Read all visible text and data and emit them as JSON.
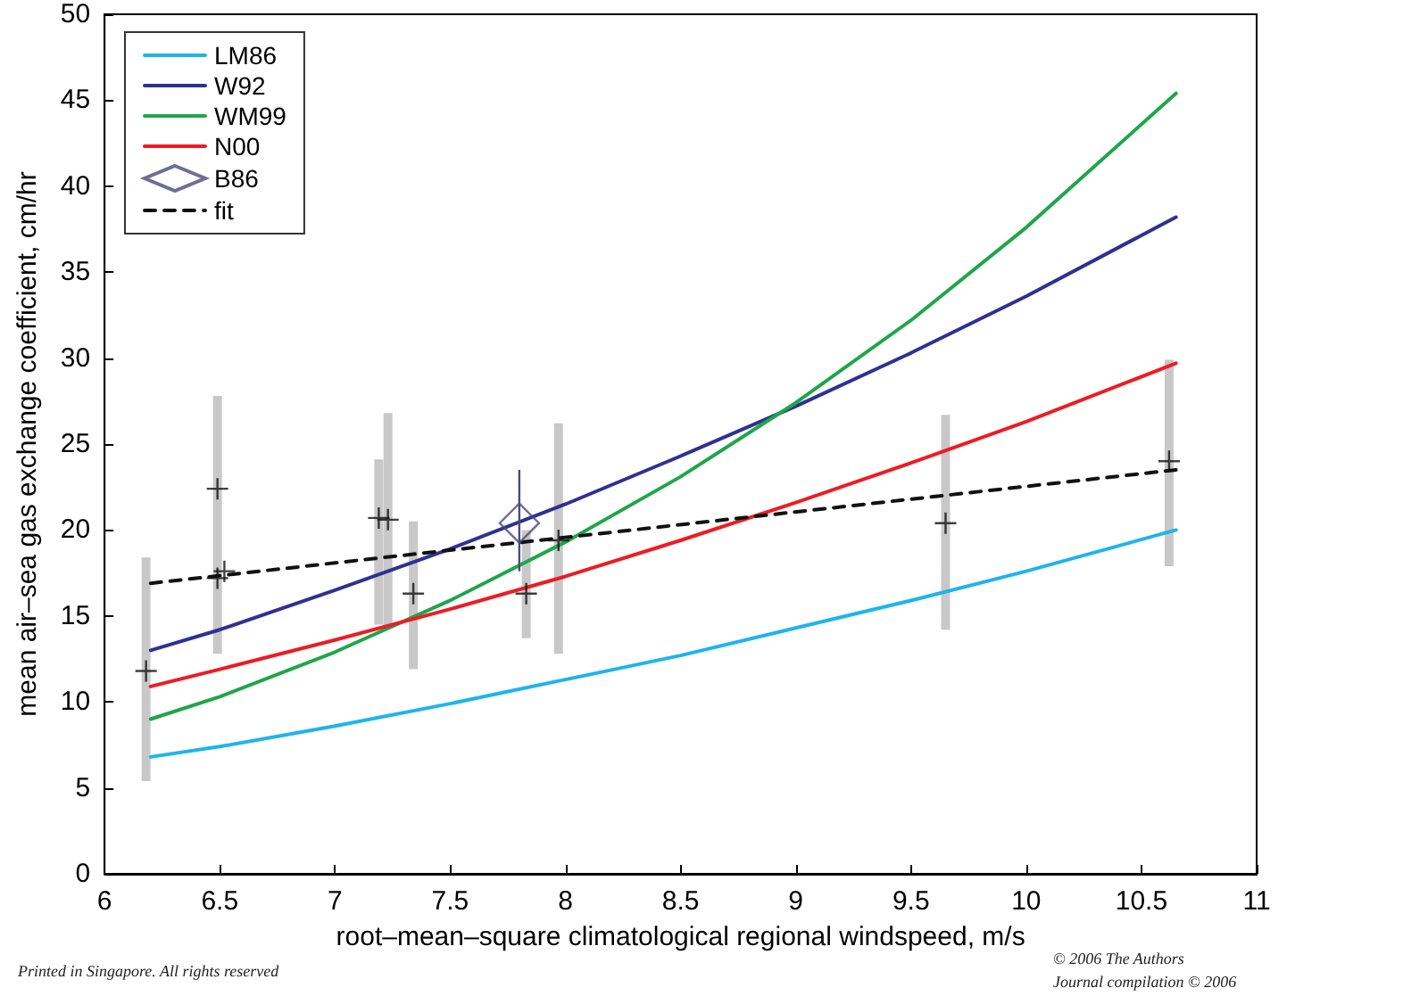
{
  "chart_data": {
    "type": "line",
    "xlabel": "root–mean–square climatological regional windspeed, m/s",
    "ylabel": "mean air–sea gas exchange coefficient, cm/hr",
    "xlim": [
      6,
      11
    ],
    "xticks": [
      6,
      6.5,
      7,
      7.5,
      8,
      8.5,
      9,
      9.5,
      10,
      10.5,
      11
    ],
    "ylim": [
      0,
      50
    ],
    "yticks": [
      0,
      5,
      10,
      15,
      20,
      25,
      30,
      35,
      40,
      45,
      50
    ],
    "legend": "top left",
    "grid": false,
    "series": [
      {
        "name": "LM86",
        "color": "#1fb4ec",
        "x": [
          6.2,
          6.5,
          7,
          7.5,
          8,
          8.5,
          9,
          9.5,
          10,
          10.65
        ],
        "values": [
          6.8,
          7.4,
          8.6,
          9.9,
          11.3,
          12.7,
          14.3,
          15.9,
          17.6,
          20.0
        ]
      },
      {
        "name": "W92",
        "color": "#2e3192",
        "x": [
          6.2,
          6.5,
          7,
          7.5,
          8,
          8.5,
          9,
          9.5,
          10,
          10.65
        ],
        "values": [
          13.0,
          14.2,
          16.5,
          18.9,
          21.5,
          24.3,
          27.2,
          30.3,
          33.6,
          38.2
        ]
      },
      {
        "name": "WM99",
        "color": "#1fa64a",
        "x": [
          6.2,
          6.5,
          7,
          7.5,
          8,
          8.5,
          9,
          9.5,
          10,
          10.65
        ],
        "values": [
          9.0,
          10.3,
          12.9,
          15.9,
          19.3,
          23.1,
          27.4,
          32.2,
          37.6,
          45.4
        ]
      },
      {
        "name": "N00",
        "color": "#ed1c24",
        "x": [
          6.2,
          6.5,
          7,
          7.5,
          8,
          8.5,
          9,
          9.5,
          10,
          10.65
        ],
        "values": [
          10.9,
          11.9,
          13.6,
          15.4,
          17.3,
          19.4,
          21.6,
          23.9,
          26.3,
          29.7
        ]
      },
      {
        "name": "B86",
        "type": "scatter",
        "marker": "diamond",
        "color": "#4a4a7a",
        "x": [
          7.8
        ],
        "values": [
          20.4
        ],
        "errors": [
          [
            17.6,
            23.5
          ]
        ]
      },
      {
        "name": "fit",
        "color": "#111111",
        "line_style": "dashed",
        "x": [
          6.2,
          10.65
        ],
        "values": [
          16.9,
          23.5
        ]
      },
      {
        "type": "scatter",
        "marker": "cross",
        "color": "#111111",
        "x": [
          6.18,
          6.49,
          6.49,
          6.52,
          7.19,
          7.23,
          7.34,
          7.83,
          7.97,
          9.65,
          10.62
        ],
        "values": [
          11.8,
          22.4,
          17.2,
          17.6,
          20.7,
          20.6,
          16.3,
          16.3,
          19.4,
          20.4,
          24.0
        ],
        "errors": [
          [
            5.4,
            18.4
          ],
          [
            12.8,
            27.8
          ],
          null,
          null,
          [
            14.5,
            24.1
          ],
          [
            14.3,
            26.8
          ],
          [
            11.9,
            20.5
          ],
          [
            13.7,
            20.0
          ],
          [
            12.8,
            26.2
          ],
          [
            14.2,
            26.7
          ],
          [
            17.9,
            29.9
          ]
        ]
      }
    ],
    "annotations": [
      "Printed in Singapore. All rights reserved",
      "© 2006 The Authors",
      "Journal compilation © 2006"
    ]
  }
}
